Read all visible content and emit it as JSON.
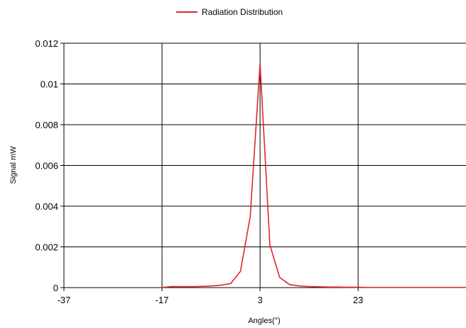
{
  "chart_data": {
    "type": "line",
    "xlabel": "Angles(°)",
    "ylabel": "Signal mW",
    "xlim": [
      -37,
      45
    ],
    "ylim": [
      0,
      0.012
    ],
    "x_ticks": [
      -37,
      -17,
      3,
      23
    ],
    "x_tick_labels": [
      "-37",
      "-17",
      "3",
      "23"
    ],
    "y_ticks": [
      0,
      0.002,
      0.004,
      0.006,
      0.008,
      0.01,
      0.012
    ],
    "y_tick_labels": [
      "0",
      "0.002",
      "0.004",
      "0.006",
      "0.008",
      "0.01",
      "0.012"
    ],
    "grid": true,
    "legend_position": "top-center",
    "series": [
      {
        "name": "Radiation Distribution",
        "color": "#e0262b",
        "x": [
          -17,
          -15,
          -10,
          -7,
          -5,
          -3,
          -1,
          1,
          3,
          5,
          7,
          9,
          11,
          13,
          15,
          17,
          19,
          21,
          23,
          25,
          27,
          31,
          35,
          40,
          45
        ],
        "y": [
          1e-05,
          5e-05,
          5e-05,
          8e-05,
          0.00012,
          0.0002,
          0.0008,
          0.0035,
          0.011,
          0.0021,
          0.0005,
          0.00015,
          8e-05,
          5e-05,
          4e-05,
          3e-05,
          3e-05,
          2e-05,
          2e-05,
          1e-05,
          1e-05,
          1e-05,
          1e-05,
          1e-05,
          1e-05
        ]
      }
    ]
  }
}
